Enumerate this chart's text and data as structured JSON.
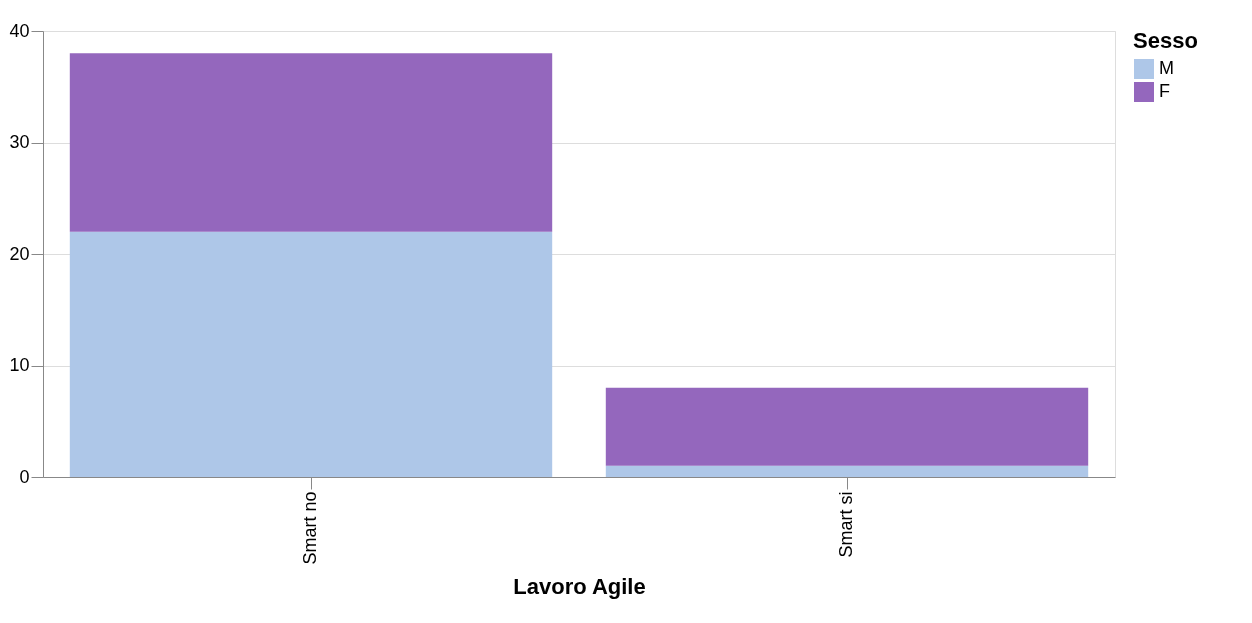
{
  "chart_data": {
    "type": "bar",
    "stacked": true,
    "xlabel": "Lavoro Agile",
    "legend_title": "Sesso",
    "categories": [
      "Smart no",
      "Smart si"
    ],
    "series": [
      {
        "name": "M",
        "color": "#aec7e8",
        "values": [
          22,
          1
        ]
      },
      {
        "name": "F",
        "color": "#9467bd",
        "values": [
          16,
          7
        ]
      }
    ],
    "ylim": [
      0,
      40
    ],
    "yticks": [
      0,
      10,
      20,
      30,
      40
    ],
    "grid": "y",
    "legend": "top right"
  }
}
